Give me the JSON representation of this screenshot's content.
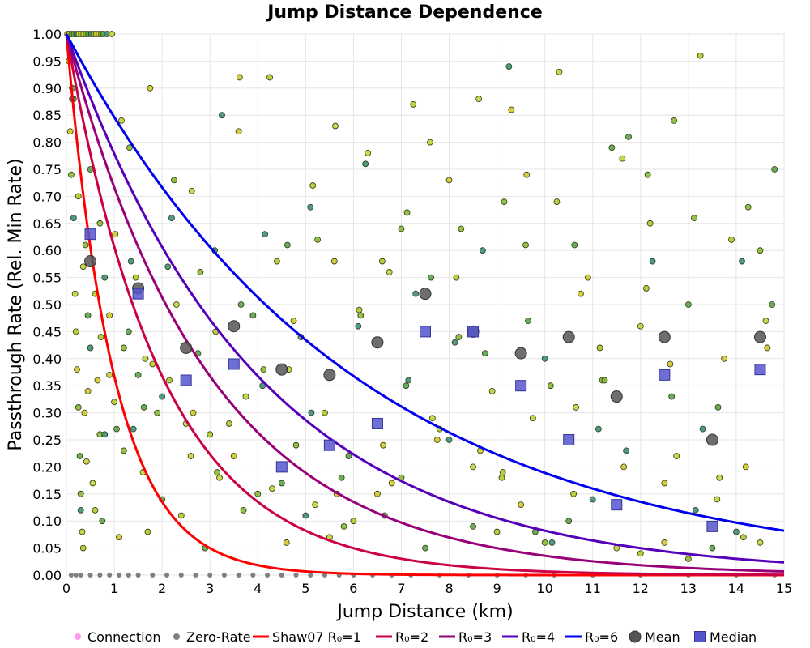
{
  "chart_data": {
    "type": "scatter",
    "title": "Jump Distance Dependence",
    "xlabel": "Jump Distance (km)",
    "ylabel": "Passthrough Rate (Rel. Min Rate)",
    "xlim": [
      0,
      15
    ],
    "ylim": [
      0,
      1
    ],
    "x_ticks": [
      "0",
      "1",
      "2",
      "3",
      "4",
      "5",
      "6",
      "7",
      "8",
      "9",
      "10",
      "11",
      "12",
      "13",
      "14",
      "15"
    ],
    "y_ticks": [
      "0.00",
      "0.05",
      "0.10",
      "0.15",
      "0.20",
      "0.25",
      "0.30",
      "0.35",
      "0.40",
      "0.45",
      "0.50",
      "0.55",
      "0.60",
      "0.65",
      "0.70",
      "0.75",
      "0.80",
      "0.85",
      "0.90",
      "0.95",
      "1.00"
    ],
    "grid": true,
    "legend_position": "bottom",
    "legend": [
      {
        "label": "Connection",
        "kind": "dot",
        "color": "#ff99ee"
      },
      {
        "label": "Zero-Rate",
        "kind": "dot",
        "color": "#808080"
      },
      {
        "label": "Shaw07 R₀=1",
        "kind": "line",
        "color": "#ff0000"
      },
      {
        "label": "R₀=2",
        "kind": "line",
        "color": "#cc0044"
      },
      {
        "label": "R₀=3",
        "kind": "line",
        "color": "#990077"
      },
      {
        "label": "R₀=4",
        "kind": "line",
        "color": "#5500bb"
      },
      {
        "label": "R₀=6",
        "kind": "line",
        "color": "#0000ee"
      },
      {
        "label": "Mean",
        "kind": "circle",
        "color": "#555555"
      },
      {
        "label": "Median",
        "kind": "square",
        "color": "#5555cc"
      }
    ],
    "curves": [
      {
        "name": "Shaw07 R₀=1",
        "r0": 1,
        "color": "#ff0000"
      },
      {
        "name": "R₀=2",
        "r0": 2,
        "color": "#cc0044"
      },
      {
        "name": "R₀=3",
        "r0": 3,
        "color": "#990077"
      },
      {
        "name": "R₀=4",
        "r0": 4,
        "color": "#5500bb"
      },
      {
        "name": "R₀=6",
        "r0": 6,
        "color": "#0000ee"
      }
    ],
    "mean_points": {
      "x": [
        0.5,
        1.5,
        2.5,
        3.5,
        4.5,
        5.5,
        6.5,
        7.5,
        8.5,
        9.5,
        10.5,
        11.5,
        12.5,
        13.5,
        14.5
      ],
      "y": [
        0.58,
        0.53,
        0.42,
        0.46,
        0.38,
        0.37,
        0.43,
        0.52,
        0.45,
        0.41,
        0.44,
        0.33,
        0.44,
        0.25,
        0.44
      ]
    },
    "median_points": {
      "x": [
        0.5,
        1.5,
        2.5,
        3.5,
        4.5,
        5.5,
        6.5,
        7.5,
        8.5,
        9.5,
        10.5,
        11.5,
        12.5,
        13.5,
        14.5
      ],
      "y": [
        0.63,
        0.52,
        0.36,
        0.39,
        0.2,
        0.24,
        0.28,
        0.45,
        0.45,
        0.35,
        0.25,
        0.13,
        0.37,
        0.09,
        0.38
      ]
    },
    "zero_rate_points": {
      "x": [
        0.1,
        0.2,
        0.3,
        0.5,
        0.7,
        0.9,
        1.1,
        1.3,
        1.5,
        1.8,
        2.1,
        2.4,
        2.7,
        3.0,
        3.3,
        3.6,
        3.9,
        4.2,
        4.5,
        4.8,
        5.1,
        5.4,
        5.7,
        6.0,
        6.4,
        6.8,
        7.2,
        7.8,
        8.4,
        9.0,
        9.6,
        10.2,
        11.0,
        12.0,
        13.0,
        14.0,
        14.8
      ],
      "y": [
        0,
        0,
        0,
        0,
        0,
        0,
        0,
        0,
        0,
        0,
        0,
        0,
        0,
        0,
        0,
        0,
        0,
        0,
        0,
        0,
        0,
        0,
        0,
        0,
        0,
        0,
        0,
        0,
        0,
        0,
        0,
        0,
        0,
        0,
        0,
        0,
        0
      ]
    },
    "connection_points": {
      "x": [
        0.05,
        0.08,
        0.1,
        0.12,
        0.15,
        0.18,
        0.2,
        0.22,
        0.25,
        0.28,
        0.3,
        0.33,
        0.35,
        0.38,
        0.4,
        0.45,
        0.5,
        0.55,
        0.6,
        0.65,
        0.7,
        0.75,
        0.8,
        0.9,
        1.0,
        1.1,
        1.2,
        1.3,
        1.4,
        1.6,
        1.7,
        1.8,
        1.9,
        2.0,
        2.2,
        2.3,
        2.4,
        2.6,
        2.8,
        2.9,
        3.1,
        3.2,
        3.4,
        3.6,
        3.7,
        3.9,
        4.1,
        4.3,
        4.4,
        4.6,
        4.8,
        4.9,
        5.1,
        5.2,
        5.4,
        5.6,
        5.8,
        5.9,
        6.1,
        6.3,
        6.6,
        6.8,
        7.0,
        7.1,
        7.3,
        7.6,
        7.8,
        8.0,
        8.2,
        8.5,
        8.7,
        8.9,
        9.1,
        9.3,
        9.6,
        9.8,
        10.0,
        10.3,
        10.6,
        10.9,
        11.2,
        11.4,
        11.7,
        12.0,
        12.2,
        12.5,
        12.7,
        13.0,
        13.3,
        13.6,
        13.9,
        14.2,
        14.5,
        14.8,
        0.15,
        0.35,
        0.6,
        0.9,
        1.2,
        1.5,
        2.0,
        2.5,
        3.0,
        3.5,
        4.0,
        4.5,
        5.0,
        5.5,
        6.0,
        6.5,
        7.0,
        7.5,
        8.0,
        8.5,
        9.0,
        9.5,
        10.0,
        10.5,
        11.0,
        11.5,
        12.0,
        12.5,
        13.0,
        13.5,
        14.0,
        14.5,
        0.25,
        0.45,
        0.7,
        1.05,
        1.35,
        1.65,
        2.15,
        2.65,
        3.15,
        3.65,
        4.15,
        4.65,
        5.15,
        5.65,
        6.15,
        6.65,
        7.15,
        7.65,
        8.15,
        8.65,
        9.15,
        9.65,
        10.15,
        10.65,
        11.15,
        11.65,
        12.15,
        12.65,
        13.15,
        13.65,
        14.15,
        14.65,
        0.3,
        0.5,
        0.8,
        1.15,
        1.45,
        1.75,
        2.25,
        2.75,
        3.25,
        3.75,
        4.25,
        4.75,
        5.25,
        5.75,
        6.25,
        6.75,
        7.25,
        7.75,
        8.25,
        8.75,
        9.25,
        9.75,
        10.25,
        10.75,
        11.25,
        11.75,
        12.25,
        12.75,
        13.25,
        13.75,
        14.25,
        14.75,
        0.12,
        0.42,
        0.72,
        1.02,
        1.32,
        1.62,
        2.12,
        2.62,
        3.12,
        3.62,
        4.12,
        4.62,
        5.12,
        5.62,
        6.12,
        6.62,
        7.12,
        7.62,
        8.12,
        8.62,
        9.12,
        9.62,
        10.12,
        10.62,
        11.12,
        11.62,
        12.12,
        12.62,
        13.12,
        13.62,
        14.12,
        14.62,
        0.02,
        0.06,
        0.11,
        0.16,
        0.21,
        0.26,
        0.31,
        0.36,
        0.41,
        0.46,
        0.52,
        0.57,
        0.62,
        0.68,
        0.73,
        0.78,
        0.85,
        0.95
      ],
      "y": [
        0.95,
        0.82,
        0.74,
        0.9,
        0.66,
        0.52,
        0.45,
        0.38,
        0.31,
        0.22,
        0.12,
        0.08,
        0.05,
        0.3,
        0.61,
        0.48,
        0.42,
        0.17,
        0.12,
        0.36,
        0.26,
        0.1,
        0.55,
        0.37,
        0.32,
        0.07,
        0.23,
        0.45,
        0.27,
        0.19,
        0.08,
        0.39,
        0.3,
        0.14,
        0.66,
        0.5,
        0.11,
        0.22,
        0.56,
        0.05,
        0.6,
        0.18,
        0.28,
        0.82,
        0.12,
        0.48,
        0.35,
        0.16,
        0.58,
        0.06,
        0.24,
        0.44,
        0.68,
        0.13,
        0.3,
        0.58,
        0.09,
        0.22,
        0.46,
        0.78,
        0.58,
        0.17,
        0.64,
        0.35,
        0.52,
        0.8,
        0.27,
        0.73,
        0.44,
        0.09,
        0.6,
        0.34,
        0.18,
        0.86,
        0.61,
        0.08,
        0.4,
        0.93,
        0.15,
        0.55,
        0.36,
        0.79,
        0.23,
        0.46,
        0.65,
        0.17,
        0.84,
        0.5,
        0.27,
        0.14,
        0.62,
        0.2,
        0.6,
        0.75,
        0.88,
        0.57,
        0.52,
        0.48,
        0.42,
        0.37,
        0.33,
        0.28,
        0.26,
        0.22,
        0.15,
        0.17,
        0.11,
        0.07,
        0.1,
        0.15,
        0.18,
        0.05,
        0.25,
        0.2,
        0.08,
        0.13,
        0.06,
        0.1,
        0.14,
        0.05,
        0.04,
        0.06,
        0.03,
        0.05,
        0.08,
        0.06,
        0.7,
        0.34,
        0.65,
        0.27,
        0.58,
        0.4,
        0.36,
        0.3,
        0.19,
        0.5,
        0.63,
        0.38,
        0.72,
        0.15,
        0.48,
        0.11,
        0.36,
        0.29,
        0.55,
        0.23,
        0.69,
        0.47,
        0.06,
        0.31,
        0.42,
        0.2,
        0.74,
        0.33,
        0.12,
        0.18,
        0.07,
        0.42,
        0.15,
        0.75,
        0.26,
        0.84,
        0.55,
        0.9,
        0.73,
        0.41,
        0.85,
        0.33,
        0.92,
        0.47,
        0.62,
        0.18,
        0.76,
        0.56,
        0.87,
        0.25,
        0.64,
        0.41,
        0.94,
        0.29,
        0.69,
        0.52,
        0.36,
        0.81,
        0.58,
        0.22,
        0.96,
        0.4,
        0.68,
        0.5,
        0.88,
        0.21,
        0.44,
        0.63,
        0.79,
        0.31,
        0.57,
        0.71,
        0.45,
        0.92,
        0.38,
        0.61,
        0.3,
        0.83,
        0.49,
        0.24,
        0.67,
        0.55,
        0.43,
        0.88,
        0.19,
        0.74,
        0.35,
        0.61,
        0.27,
        0.77,
        0.53,
        0.39,
        0.66,
        0.31,
        0.58,
        0.47,
        1.0,
        1.0,
        1.0,
        1.0,
        1.0,
        1.0,
        1.0,
        1.0,
        1.0,
        1.0,
        1.0,
        1.0,
        1.0,
        1.0,
        1.0,
        1.0,
        1.0,
        1.0
      ]
    }
  }
}
